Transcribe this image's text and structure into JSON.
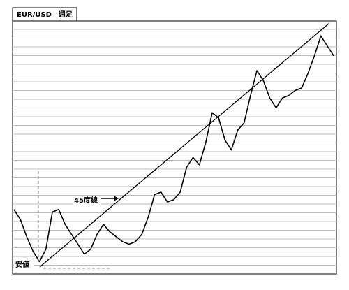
{
  "chart_data": {
    "type": "line",
    "title": "EUR/USD　週足",
    "annotations": [
      "45度線",
      "安値"
    ],
    "ylim": [
      0,
      100
    ],
    "grid": true,
    "series": [
      {
        "color": "#000000",
        "values": [
          24,
          20,
          13,
          7,
          3,
          8,
          23,
          24,
          18,
          14,
          10,
          6,
          8,
          14,
          18,
          15,
          13,
          11,
          10,
          11,
          14,
          21,
          30,
          31,
          27,
          28,
          31,
          41,
          45,
          42,
          51,
          63,
          61,
          52,
          48,
          56,
          59,
          70,
          80,
          76,
          69,
          65,
          69,
          70,
          72,
          73,
          79,
          86,
          94,
          90,
          86
        ]
      }
    ]
  }
}
